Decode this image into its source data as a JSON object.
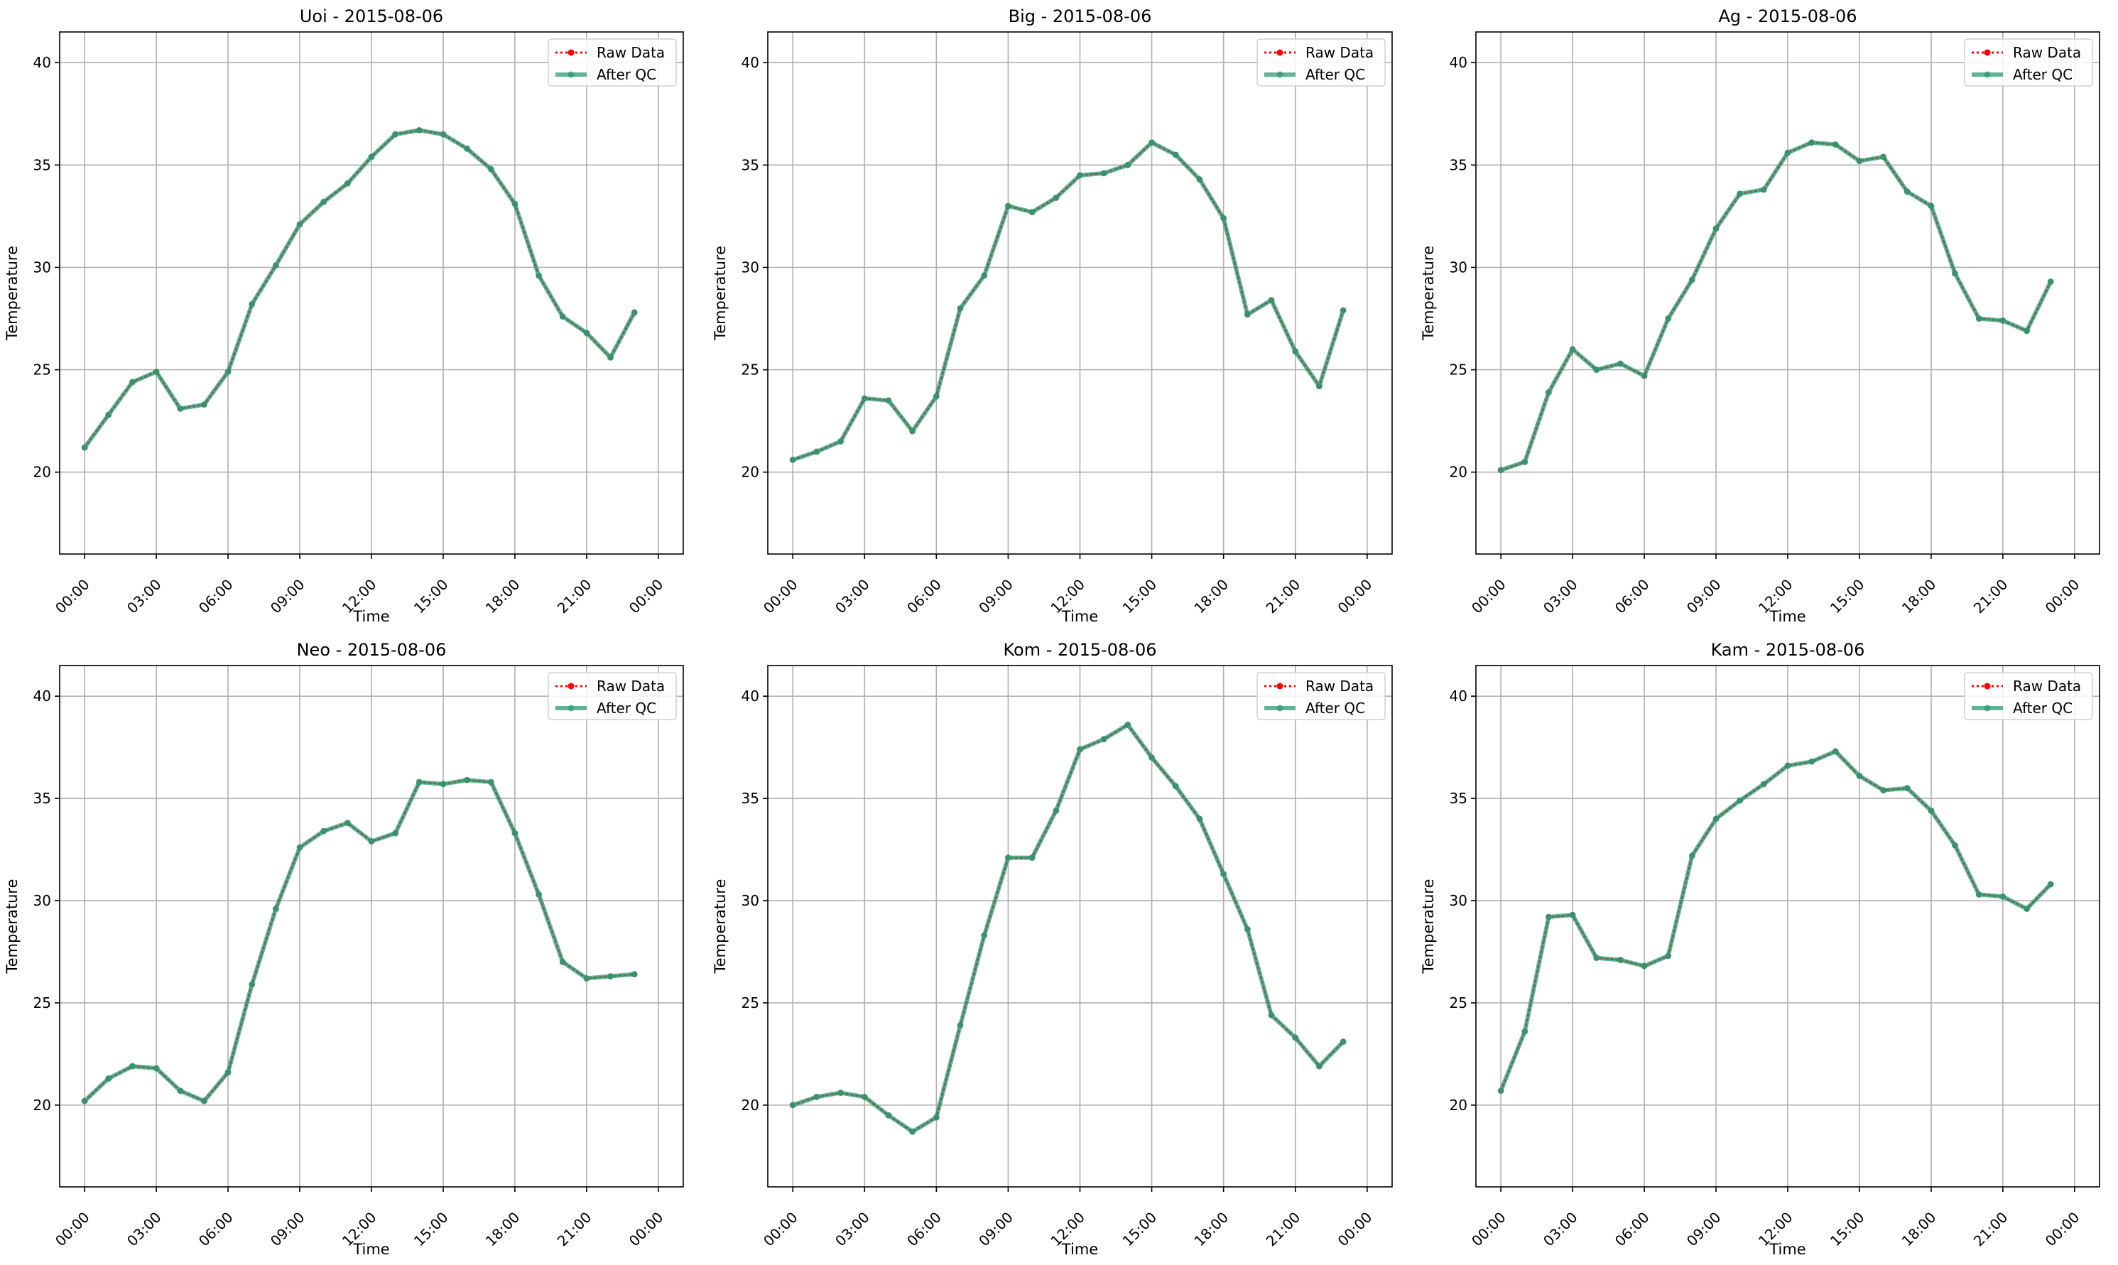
{
  "chart_data": [
    {
      "type": "line",
      "title": "Uoi - 2015-08-06",
      "xlabel": "Time",
      "ylabel": "Temperature",
      "xlim": [
        "2015-08-06 00:00",
        "2015-08-07 00:00"
      ],
      "ylim": [
        16,
        41.5
      ],
      "xticks": [
        "00:00",
        "03:00",
        "06:00",
        "09:00",
        "12:00",
        "15:00",
        "18:00",
        "21:00",
        "00:00"
      ],
      "yticks": [
        20,
        25,
        30,
        35,
        40
      ],
      "grid": true,
      "legend": "top-right",
      "x": [
        "00:00",
        "01:00",
        "02:00",
        "03:00",
        "04:00",
        "05:00",
        "06:00",
        "07:00",
        "08:00",
        "09:00",
        "10:00",
        "11:00",
        "12:00",
        "13:00",
        "14:00",
        "15:00",
        "16:00",
        "17:00",
        "18:00",
        "19:00",
        "20:00",
        "21:00",
        "22:00",
        "23:00"
      ],
      "series": [
        {
          "name": "Raw Data",
          "color": "#ff0000",
          "values": [
            21.2,
            22.8,
            24.4,
            24.9,
            23.1,
            23.3,
            24.9,
            28.2,
            30.1,
            32.1,
            33.2,
            34.1,
            35.4,
            36.5,
            36.7,
            36.5,
            35.8,
            34.8,
            33.1,
            29.6,
            27.6,
            26.8,
            25.6,
            27.8
          ]
        },
        {
          "name": "After QC",
          "color": "#2a9d75",
          "values": [
            21.2,
            22.8,
            24.4,
            24.9,
            23.1,
            23.3,
            24.9,
            28.2,
            30.1,
            32.1,
            33.2,
            34.1,
            35.4,
            36.5,
            36.7,
            36.5,
            35.8,
            34.8,
            33.1,
            29.6,
            27.6,
            26.8,
            25.6,
            27.8
          ]
        }
      ]
    },
    {
      "type": "line",
      "title": "Big - 2015-08-06",
      "xlabel": "Time",
      "ylabel": "Temperature",
      "xlim": [
        "2015-08-06 00:00",
        "2015-08-07 00:00"
      ],
      "ylim": [
        16,
        41.5
      ],
      "xticks": [
        "00:00",
        "03:00",
        "06:00",
        "09:00",
        "12:00",
        "15:00",
        "18:00",
        "21:00",
        "00:00"
      ],
      "yticks": [
        20,
        25,
        30,
        35,
        40
      ],
      "grid": true,
      "legend": "top-right",
      "x": [
        "00:00",
        "01:00",
        "02:00",
        "03:00",
        "04:00",
        "05:00",
        "06:00",
        "07:00",
        "08:00",
        "09:00",
        "10:00",
        "11:00",
        "12:00",
        "13:00",
        "14:00",
        "15:00",
        "16:00",
        "17:00",
        "18:00",
        "19:00",
        "20:00",
        "21:00",
        "22:00",
        "23:00"
      ],
      "series": [
        {
          "name": "Raw Data",
          "color": "#ff0000",
          "values": [
            20.6,
            21.0,
            21.5,
            23.6,
            23.5,
            22.0,
            23.7,
            28.0,
            29.6,
            33.0,
            32.7,
            33.4,
            34.5,
            34.6,
            35.0,
            36.1,
            35.5,
            34.3,
            32.4,
            27.7,
            28.4,
            25.9,
            24.2,
            27.9
          ]
        },
        {
          "name": "After QC",
          "color": "#2a9d75",
          "values": [
            20.6,
            21.0,
            21.5,
            23.6,
            23.5,
            22.0,
            23.7,
            28.0,
            29.6,
            33.0,
            32.7,
            33.4,
            34.5,
            34.6,
            35.0,
            36.1,
            35.5,
            34.3,
            32.4,
            27.7,
            28.4,
            25.9,
            24.2,
            27.9
          ]
        }
      ]
    },
    {
      "type": "line",
      "title": "Ag - 2015-08-06",
      "xlabel": "Time",
      "ylabel": "Temperature",
      "xlim": [
        "2015-08-06 00:00",
        "2015-08-07 00:00"
      ],
      "ylim": [
        16,
        41.5
      ],
      "xticks": [
        "00:00",
        "03:00",
        "06:00",
        "09:00",
        "12:00",
        "15:00",
        "18:00",
        "21:00",
        "00:00"
      ],
      "yticks": [
        20,
        25,
        30,
        35,
        40
      ],
      "grid": true,
      "legend": "top-right",
      "x": [
        "00:00",
        "01:00",
        "02:00",
        "03:00",
        "04:00",
        "05:00",
        "06:00",
        "07:00",
        "08:00",
        "09:00",
        "10:00",
        "11:00",
        "12:00",
        "13:00",
        "14:00",
        "15:00",
        "16:00",
        "17:00",
        "18:00",
        "19:00",
        "20:00",
        "21:00",
        "22:00",
        "23:00"
      ],
      "series": [
        {
          "name": "Raw Data",
          "color": "#ff0000",
          "values": [
            20.1,
            20.5,
            23.9,
            26.0,
            25.0,
            25.3,
            24.7,
            27.5,
            29.4,
            31.9,
            33.6,
            33.8,
            35.6,
            36.1,
            36.0,
            35.2,
            35.4,
            33.7,
            33.0,
            29.7,
            27.5,
            27.4,
            26.9,
            29.3
          ]
        },
        {
          "name": "After QC",
          "color": "#2a9d75",
          "values": [
            20.1,
            20.5,
            23.9,
            26.0,
            25.0,
            25.3,
            24.7,
            27.5,
            29.4,
            31.9,
            33.6,
            33.8,
            35.6,
            36.1,
            36.0,
            35.2,
            35.4,
            33.7,
            33.0,
            29.7,
            27.5,
            27.4,
            26.9,
            29.3
          ]
        }
      ]
    },
    {
      "type": "line",
      "title": "Neo - 2015-08-06",
      "xlabel": "Time",
      "ylabel": "Temperature",
      "xlim": [
        "2015-08-06 00:00",
        "2015-08-07 00:00"
      ],
      "ylim": [
        16,
        41.5
      ],
      "xticks": [
        "00:00",
        "03:00",
        "06:00",
        "09:00",
        "12:00",
        "15:00",
        "18:00",
        "21:00",
        "00:00"
      ],
      "yticks": [
        20,
        25,
        30,
        35,
        40
      ],
      "grid": true,
      "legend": "top-right",
      "x": [
        "00:00",
        "01:00",
        "02:00",
        "03:00",
        "04:00",
        "05:00",
        "06:00",
        "07:00",
        "08:00",
        "09:00",
        "10:00",
        "11:00",
        "12:00",
        "13:00",
        "14:00",
        "15:00",
        "16:00",
        "17:00",
        "18:00",
        "19:00",
        "20:00",
        "21:00",
        "22:00",
        "23:00"
      ],
      "series": [
        {
          "name": "Raw Data",
          "color": "#ff0000",
          "values": [
            20.2,
            21.3,
            21.9,
            21.8,
            20.7,
            20.2,
            21.6,
            25.9,
            29.6,
            32.6,
            33.4,
            33.8,
            32.9,
            33.3,
            35.8,
            35.7,
            35.9,
            35.8,
            33.3,
            30.3,
            27.0,
            26.2,
            26.3,
            26.4
          ]
        },
        {
          "name": "After QC",
          "color": "#2a9d75",
          "values": [
            20.2,
            21.3,
            21.9,
            21.8,
            20.7,
            20.2,
            21.6,
            25.9,
            29.6,
            32.6,
            33.4,
            33.8,
            32.9,
            33.3,
            35.8,
            35.7,
            35.9,
            35.8,
            33.3,
            30.3,
            27.0,
            26.2,
            26.3,
            26.4
          ]
        }
      ]
    },
    {
      "type": "line",
      "title": "Kom - 2015-08-06",
      "xlabel": "Time",
      "ylabel": "Temperature",
      "xlim": [
        "2015-08-06 00:00",
        "2015-08-07 00:00"
      ],
      "ylim": [
        16,
        41.5
      ],
      "xticks": [
        "00:00",
        "03:00",
        "06:00",
        "09:00",
        "12:00",
        "15:00",
        "18:00",
        "21:00",
        "00:00"
      ],
      "yticks": [
        20,
        25,
        30,
        35,
        40
      ],
      "grid": true,
      "legend": "top-right",
      "x": [
        "00:00",
        "01:00",
        "02:00",
        "03:00",
        "04:00",
        "05:00",
        "06:00",
        "07:00",
        "08:00",
        "09:00",
        "10:00",
        "11:00",
        "12:00",
        "13:00",
        "14:00",
        "15:00",
        "16:00",
        "17:00",
        "18:00",
        "19:00",
        "20:00",
        "21:00",
        "22:00",
        "23:00"
      ],
      "series": [
        {
          "name": "Raw Data",
          "color": "#ff0000",
          "values": [
            20.0,
            20.4,
            20.6,
            20.4,
            19.5,
            18.7,
            19.4,
            23.9,
            28.3,
            32.1,
            32.1,
            34.4,
            37.4,
            37.9,
            38.6,
            37.0,
            35.6,
            34.0,
            31.3,
            28.6,
            24.4,
            23.3,
            21.9,
            23.1
          ]
        },
        {
          "name": "After QC",
          "color": "#2a9d75",
          "values": [
            20.0,
            20.4,
            20.6,
            20.4,
            19.5,
            18.7,
            19.4,
            23.9,
            28.3,
            32.1,
            32.1,
            34.4,
            37.4,
            37.9,
            38.6,
            37.0,
            35.6,
            34.0,
            31.3,
            28.6,
            24.4,
            23.3,
            21.9,
            23.1
          ]
        }
      ]
    },
    {
      "type": "line",
      "title": "Kam - 2015-08-06",
      "xlabel": "Time",
      "ylabel": "Temperature",
      "xlim": [
        "2015-08-06 00:00",
        "2015-08-07 00:00"
      ],
      "ylim": [
        16,
        41.5
      ],
      "xticks": [
        "00:00",
        "03:00",
        "06:00",
        "09:00",
        "12:00",
        "15:00",
        "18:00",
        "21:00",
        "00:00"
      ],
      "yticks": [
        20,
        25,
        30,
        35,
        40
      ],
      "grid": true,
      "legend": "top-right",
      "x": [
        "00:00",
        "01:00",
        "02:00",
        "03:00",
        "04:00",
        "05:00",
        "06:00",
        "07:00",
        "08:00",
        "09:00",
        "10:00",
        "11:00",
        "12:00",
        "13:00",
        "14:00",
        "15:00",
        "16:00",
        "17:00",
        "18:00",
        "19:00",
        "20:00",
        "21:00",
        "22:00",
        "23:00"
      ],
      "series": [
        {
          "name": "Raw Data",
          "color": "#ff0000",
          "values": [
            20.7,
            23.6,
            29.2,
            29.3,
            27.2,
            27.1,
            26.8,
            27.3,
            32.2,
            34.0,
            34.9,
            35.7,
            36.6,
            36.8,
            37.3,
            36.1,
            35.4,
            35.5,
            34.4,
            32.7,
            30.3,
            30.2,
            29.6,
            30.8
          ]
        },
        {
          "name": "After QC",
          "color": "#2a9d75",
          "values": [
            20.7,
            23.6,
            29.2,
            29.3,
            27.2,
            27.1,
            26.8,
            27.3,
            32.2,
            34.0,
            34.9,
            35.7,
            36.6,
            36.8,
            37.3,
            36.1,
            35.4,
            35.5,
            34.4,
            32.7,
            30.3,
            30.2,
            29.6,
            30.8
          ]
        }
      ]
    }
  ]
}
